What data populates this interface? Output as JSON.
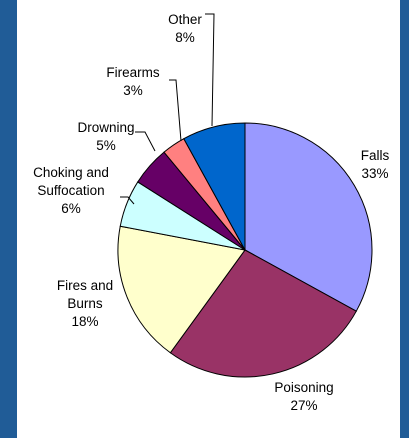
{
  "chart_data": {
    "type": "pie",
    "title": "",
    "slices": [
      {
        "label": "Falls",
        "value": 33,
        "color": "#9999ff"
      },
      {
        "label": "Poisoning",
        "value": 27,
        "color": "#993366"
      },
      {
        "label": "Fires and Burns",
        "value": 18,
        "color": "#ffffcc"
      },
      {
        "label": "Choking and Suffocation",
        "value": 6,
        "color": "#ccffff"
      },
      {
        "label": "Drowning",
        "value": 5,
        "color": "#660066"
      },
      {
        "label": "Firearms",
        "value": 3,
        "color": "#ff8080"
      },
      {
        "label": "Other",
        "value": 8,
        "color": "#0066cc"
      }
    ],
    "data_labels": [
      {
        "lines": [
          "Falls",
          "33%"
        ]
      },
      {
        "lines": [
          "Poisoning",
          "27%"
        ]
      },
      {
        "lines": [
          "Fires and",
          "Burns",
          "18%"
        ]
      },
      {
        "lines": [
          "Choking and",
          "Suffocation",
          "6%"
        ]
      },
      {
        "lines": [
          "Drowning",
          "5%"
        ]
      },
      {
        "lines": [
          "Firearms",
          "3%"
        ]
      },
      {
        "lines": [
          "Other",
          "8%"
        ]
      }
    ],
    "legend": "none"
  }
}
